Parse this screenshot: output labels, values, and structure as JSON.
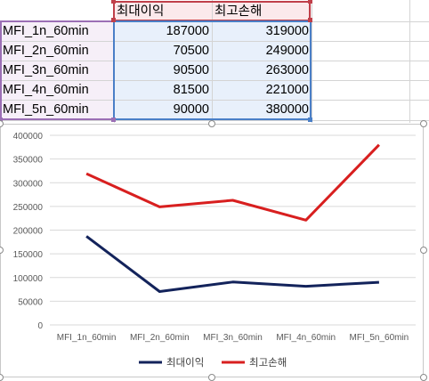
{
  "sheet": {
    "headers": [
      "최대이익",
      "최고손해"
    ],
    "rows": [
      {
        "label": "MFI_1n_60min",
        "max_profit": "187000",
        "max_loss": "319000"
      },
      {
        "label": "MFI_2n_60min",
        "max_profit": "70500",
        "max_loss": "249000"
      },
      {
        "label": "MFI_3n_60min",
        "max_profit": "90500",
        "max_loss": "263000"
      },
      {
        "label": "MFI_4n_60min",
        "max_profit": "81500",
        "max_loss": "221000"
      },
      {
        "label": "MFI_5n_60min",
        "max_profit": "90000",
        "max_loss": "380000"
      }
    ]
  },
  "chart_data": {
    "type": "line",
    "categories": [
      "MFI_1n_60min",
      "MFI_2n_60min",
      "MFI_3n_60min",
      "MFI_4n_60min",
      "MFI_5n_60min"
    ],
    "series": [
      {
        "name": "최대이익",
        "values": [
          187000,
          70500,
          90500,
          81500,
          90000
        ],
        "color": "#13235b"
      },
      {
        "name": "최고손해",
        "values": [
          319000,
          249000,
          263000,
          221000,
          380000
        ],
        "color": "#d81f1f"
      }
    ],
    "ylim": [
      0,
      400000
    ],
    "yticks": [
      "0",
      "50000",
      "100000",
      "150000",
      "200000",
      "250000",
      "300000",
      "350000",
      "400000"
    ],
    "grid": true,
    "legend": "bottom"
  }
}
